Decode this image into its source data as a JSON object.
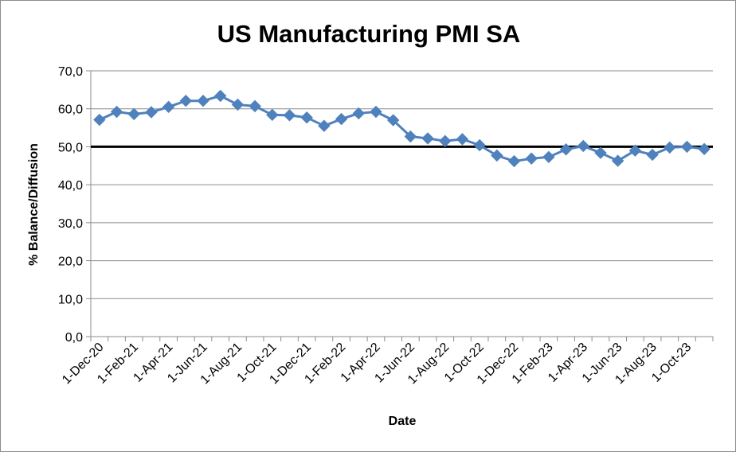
{
  "chart_data": {
    "type": "line",
    "title": "US Manufacturing PMI SA",
    "xlabel": "Date",
    "ylabel": "% Balance/Diffusion",
    "ylim": [
      0,
      70
    ],
    "yticks": [
      "0,0",
      "10,0",
      "20,0",
      "30,0",
      "40,0",
      "50,0",
      "60,0",
      "70,0"
    ],
    "x_tick_labels": [
      "1-Dec-20",
      "1-Feb-21",
      "1-Apr-21",
      "1-Jun-21",
      "1-Aug-21",
      "1-Oct-21",
      "1-Dec-21",
      "1-Feb-22",
      "1-Apr-22",
      "1-Jun-22",
      "1-Aug-22",
      "1-Oct-22",
      "1-Dec-22",
      "1-Feb-23",
      "1-Apr-23",
      "1-Jun-23",
      "1-Aug-23",
      "1-Oct-23"
    ],
    "x": [
      "1-Dec-20",
      "1-Jan-21",
      "1-Feb-21",
      "1-Mar-21",
      "1-Apr-21",
      "1-May-21",
      "1-Jun-21",
      "1-Jul-21",
      "1-Aug-21",
      "1-Sep-21",
      "1-Oct-21",
      "1-Nov-21",
      "1-Dec-21",
      "1-Jan-22",
      "1-Feb-22",
      "1-Mar-22",
      "1-Apr-22",
      "1-May-22",
      "1-Jun-22",
      "1-Jul-22",
      "1-Aug-22",
      "1-Sep-22",
      "1-Oct-22",
      "1-Nov-22",
      "1-Dec-22",
      "1-Jan-23",
      "1-Feb-23",
      "1-Mar-23",
      "1-Apr-23",
      "1-May-23",
      "1-Jun-23",
      "1-Jul-23",
      "1-Aug-23",
      "1-Sep-23",
      "1-Oct-23",
      "1-Nov-23"
    ],
    "series": [
      {
        "color": "#4f81bd",
        "marker": "diamond",
        "values": [
          57.1,
          59.2,
          58.6,
          59.1,
          60.5,
          62.1,
          62.1,
          63.4,
          61.1,
          60.7,
          58.4,
          58.3,
          57.7,
          55.5,
          57.3,
          58.8,
          59.2,
          57.0,
          52.7,
          52.2,
          51.5,
          52.0,
          50.4,
          47.7,
          46.2,
          46.9,
          47.3,
          49.3,
          50.2,
          48.4,
          46.3,
          49.0,
          47.9,
          49.8,
          50.0,
          49.4
        ]
      }
    ],
    "reference_line": {
      "y": 50,
      "color": "#000000"
    },
    "grid": true,
    "legend": "none"
  }
}
